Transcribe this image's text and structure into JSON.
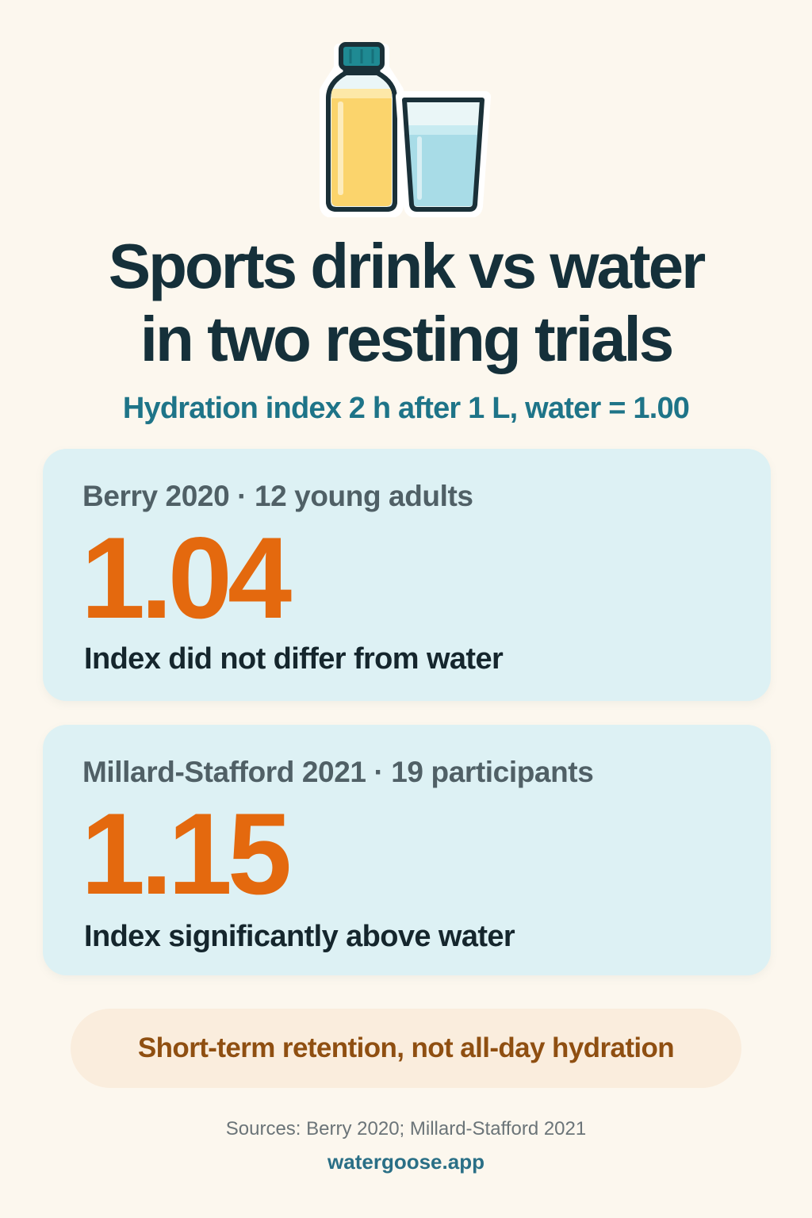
{
  "header": {
    "illustration_icon": "sports-drink-bottle-and-water-glass-icon",
    "title_line_1": "Sports drink vs water",
    "title_line_2": "in two resting trials",
    "subtitle": "Hydration index 2 h after 1 L, water = 1.00"
  },
  "studies": [
    {
      "label": "Berry 2020 · 12 young adults",
      "value": "1.04",
      "note": "Index did not differ from water"
    },
    {
      "label": "Millard-Stafford 2021 · 19 participants",
      "value": "1.15",
      "note": "Index significantly above water"
    }
  ],
  "callout": "Short-term retention, not all-day hydration",
  "footer": {
    "sources": "Sources: Berry 2020; Millard-Stafford 2021",
    "site": "watergoose.app"
  },
  "colors": {
    "background": "#FCF7EE",
    "title": "#15303A",
    "subtitle": "#1E7488",
    "card": "#DDF1F4",
    "value": "#E4690E",
    "callout_bg": "#FAEDDD",
    "callout_text": "#8F4F11",
    "link": "#2A6F86"
  }
}
